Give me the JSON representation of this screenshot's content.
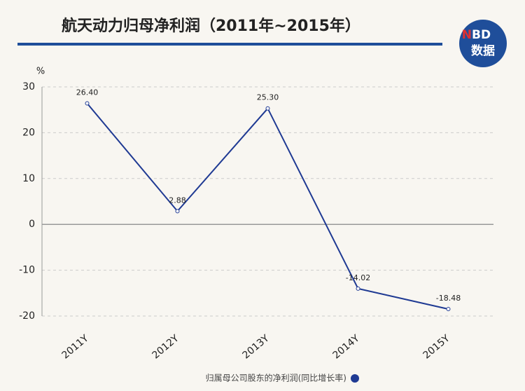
{
  "chart_data": {
    "type": "line",
    "title": "航天动力归母净利润（2011年~2015年）",
    "y_label": "%",
    "logo": {
      "n": "N",
      "bd": "BD",
      "sub": "数据"
    },
    "categories": [
      "2011Y",
      "2012Y",
      "2013Y",
      "2014Y",
      "2015Y"
    ],
    "series": [
      {
        "name": "归属母公司股东的净利润(同比增长率)",
        "color": "#1f3a93",
        "values": [
          26.4,
          2.88,
          25.3,
          -14.02,
          -18.48
        ],
        "value_labels": [
          "26.40",
          "2.88",
          "25.30",
          "-14.02",
          "-18.48"
        ]
      }
    ],
    "ylim": [
      -20,
      30
    ],
    "yticks": [
      -20,
      -10,
      0,
      10,
      20,
      30
    ],
    "grid": true
  }
}
